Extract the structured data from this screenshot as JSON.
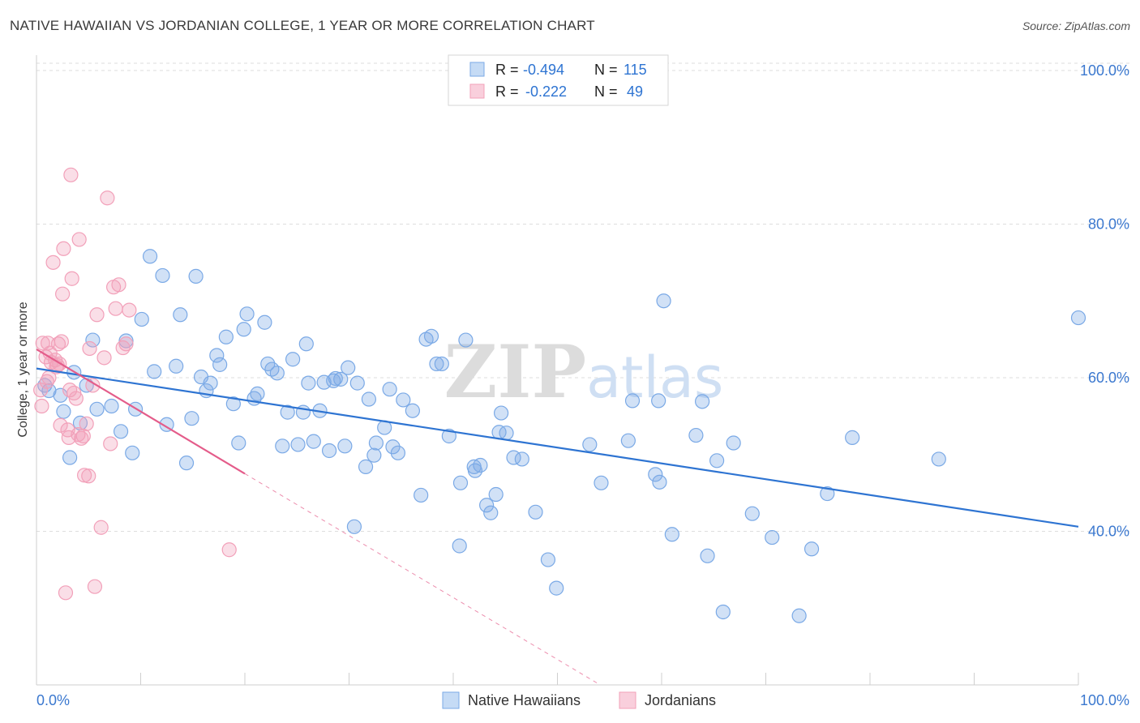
{
  "chart_data": {
    "type": "scatter",
    "title": "NATIVE HAWAIIAN VS JORDANIAN COLLEGE, 1 YEAR OR MORE CORRELATION CHART",
    "source": "Source: ZipAtlas.com",
    "xlabel": "",
    "ylabel": "College, 1 year or more",
    "xlim": [
      0,
      100
    ],
    "ylim": [
      20,
      102
    ],
    "x_tick_labels": [
      "0.0%",
      "100.0%"
    ],
    "y_ticks": [
      40,
      60,
      80,
      100
    ],
    "y_tick_labels": [
      "40.0%",
      "60.0%",
      "80.0%",
      "100.0%"
    ],
    "grid": true,
    "legend_position": "bottom",
    "watermark": "ZIPatlas",
    "stats": [
      {
        "r_label": "R =",
        "r_value": "-0.494",
        "n_label": "N =",
        "n_value": "115"
      },
      {
        "r_label": "R =",
        "r_value": "-0.222",
        "n_label": "N =",
        "n_value": "49"
      }
    ],
    "series": [
      {
        "name": "Native Hawaiians",
        "color": "#7aa9e6",
        "line_color": "#2e74d2",
        "trend": {
          "x": [
            0,
            100
          ],
          "y": [
            61.2,
            40.6
          ],
          "dashed_to": null
        },
        "points": [
          [
            1.2,
            58.3
          ],
          [
            0.8,
            59.0
          ],
          [
            2.3,
            57.7
          ],
          [
            2.6,
            55.6
          ],
          [
            3.6,
            60.7
          ],
          [
            4.2,
            54.1
          ],
          [
            4.8,
            59.0
          ],
          [
            3.2,
            49.6
          ],
          [
            5.4,
            64.9
          ],
          [
            5.8,
            55.9
          ],
          [
            7.2,
            56.3
          ],
          [
            8.1,
            53.0
          ],
          [
            8.6,
            64.8
          ],
          [
            9.2,
            50.2
          ],
          [
            9.5,
            55.9
          ],
          [
            10.1,
            67.6
          ],
          [
            10.9,
            75.8
          ],
          [
            11.3,
            60.8
          ],
          [
            12.1,
            73.3
          ],
          [
            12.5,
            53.9
          ],
          [
            13.4,
            61.5
          ],
          [
            13.8,
            68.2
          ],
          [
            14.4,
            48.9
          ],
          [
            14.9,
            54.7
          ],
          [
            15.3,
            73.2
          ],
          [
            15.8,
            60.1
          ],
          [
            16.3,
            58.3
          ],
          [
            16.7,
            59.3
          ],
          [
            17.3,
            62.9
          ],
          [
            17.6,
            61.7
          ],
          [
            18.2,
            65.3
          ],
          [
            18.9,
            56.6
          ],
          [
            19.4,
            51.5
          ],
          [
            19.9,
            66.3
          ],
          [
            20.2,
            68.3
          ],
          [
            20.9,
            57.3
          ],
          [
            21.2,
            57.9
          ],
          [
            21.9,
            67.2
          ],
          [
            22.2,
            61.8
          ],
          [
            22.6,
            61.1
          ],
          [
            23.1,
            60.6
          ],
          [
            23.6,
            51.1
          ],
          [
            24.1,
            55.5
          ],
          [
            24.6,
            62.4
          ],
          [
            25.1,
            51.3
          ],
          [
            25.6,
            55.5
          ],
          [
            25.9,
            64.4
          ],
          [
            26.1,
            59.3
          ],
          [
            26.6,
            51.7
          ],
          [
            27.2,
            55.7
          ],
          [
            27.6,
            59.4
          ],
          [
            28.1,
            50.5
          ],
          [
            28.5,
            59.6
          ],
          [
            29.2,
            59.8
          ],
          [
            29.6,
            51.1
          ],
          [
            29.9,
            61.3
          ],
          [
            30.5,
            40.6
          ],
          [
            30.8,
            59.3
          ],
          [
            31.6,
            48.4
          ],
          [
            31.9,
            57.2
          ],
          [
            32.4,
            49.9
          ],
          [
            32.6,
            51.5
          ],
          [
            33.4,
            53.5
          ],
          [
            33.9,
            58.5
          ],
          [
            34.2,
            51.0
          ],
          [
            34.7,
            50.2
          ],
          [
            35.2,
            57.1
          ],
          [
            36.1,
            55.7
          ],
          [
            36.9,
            44.7
          ],
          [
            37.4,
            65.0
          ],
          [
            37.9,
            65.4
          ],
          [
            38.4,
            61.8
          ],
          [
            38.9,
            61.8
          ],
          [
            39.6,
            52.4
          ],
          [
            40.6,
            38.1
          ],
          [
            40.7,
            46.3
          ],
          [
            41.2,
            64.9
          ],
          [
            42.0,
            48.4
          ],
          [
            42.1,
            47.9
          ],
          [
            42.6,
            48.6
          ],
          [
            43.2,
            43.4
          ],
          [
            43.6,
            42.4
          ],
          [
            44.1,
            44.8
          ],
          [
            44.6,
            55.4
          ],
          [
            45.1,
            52.8
          ],
          [
            45.8,
            49.6
          ],
          [
            46.6,
            49.4
          ],
          [
            47.9,
            42.5
          ],
          [
            49.1,
            36.3
          ],
          [
            49.9,
            32.6
          ],
          [
            53.1,
            51.3
          ],
          [
            54.2,
            46.3
          ],
          [
            56.8,
            51.8
          ],
          [
            59.4,
            47.4
          ],
          [
            59.8,
            46.4
          ],
          [
            60.2,
            70.0
          ],
          [
            61.0,
            39.6
          ],
          [
            63.3,
            52.5
          ],
          [
            63.9,
            56.9
          ],
          [
            64.4,
            36.8
          ],
          [
            65.3,
            49.2
          ],
          [
            65.9,
            29.5
          ],
          [
            66.9,
            51.5
          ],
          [
            68.7,
            42.3
          ],
          [
            70.6,
            39.2
          ],
          [
            73.2,
            29.0
          ],
          [
            74.4,
            37.7
          ],
          [
            75.9,
            44.9
          ],
          [
            78.3,
            52.2
          ],
          [
            86.6,
            49.4
          ],
          [
            100.0,
            67.8
          ],
          [
            59.7,
            57.0
          ],
          [
            44.4,
            52.9
          ],
          [
            57.2,
            57.0
          ],
          [
            28.7,
            59.9
          ]
        ]
      },
      {
        "name": "Jordanians",
        "color": "#f2a0b9",
        "line_color": "#e45c8a",
        "trend": {
          "x": [
            0,
            20
          ],
          "y": [
            63.7,
            47.5
          ],
          "dashed_to": [
            100,
            -17.0
          ]
        },
        "points": [
          [
            0.4,
            58.4
          ],
          [
            0.5,
            56.3
          ],
          [
            0.6,
            64.5
          ],
          [
            0.9,
            62.7
          ],
          [
            1.1,
            64.5
          ],
          [
            1.2,
            60.0
          ],
          [
            1.3,
            63.2
          ],
          [
            1.4,
            62.0
          ],
          [
            1.6,
            75.0
          ],
          [
            1.8,
            62.3
          ],
          [
            1.9,
            61.4
          ],
          [
            2.1,
            64.4
          ],
          [
            2.2,
            61.8
          ],
          [
            2.3,
            53.8
          ],
          [
            2.4,
            64.7
          ],
          [
            2.5,
            70.9
          ],
          [
            2.6,
            76.8
          ],
          [
            2.8,
            32.0
          ],
          [
            3.0,
            53.2
          ],
          [
            3.1,
            52.2
          ],
          [
            3.2,
            58.4
          ],
          [
            3.3,
            86.4
          ],
          [
            3.4,
            72.9
          ],
          [
            3.6,
            58.0
          ],
          [
            3.8,
            57.3
          ],
          [
            4.1,
            78.0
          ],
          [
            4.3,
            52.1
          ],
          [
            4.5,
            52.4
          ],
          [
            4.6,
            47.3
          ],
          [
            4.8,
            54.0
          ],
          [
            5.0,
            47.2
          ],
          [
            5.1,
            63.8
          ],
          [
            5.4,
            59.0
          ],
          [
            5.6,
            32.8
          ],
          [
            5.8,
            68.2
          ],
          [
            6.2,
            40.5
          ],
          [
            6.5,
            62.6
          ],
          [
            6.8,
            83.4
          ],
          [
            7.1,
            51.4
          ],
          [
            7.4,
            71.8
          ],
          [
            7.6,
            69.0
          ],
          [
            7.9,
            72.1
          ],
          [
            8.3,
            63.9
          ],
          [
            8.6,
            64.4
          ],
          [
            8.9,
            68.8
          ],
          [
            18.5,
            37.6
          ],
          [
            4.0,
            52.6
          ],
          [
            2.0,
            61.6
          ],
          [
            1.0,
            59.5
          ]
        ]
      }
    ]
  }
}
